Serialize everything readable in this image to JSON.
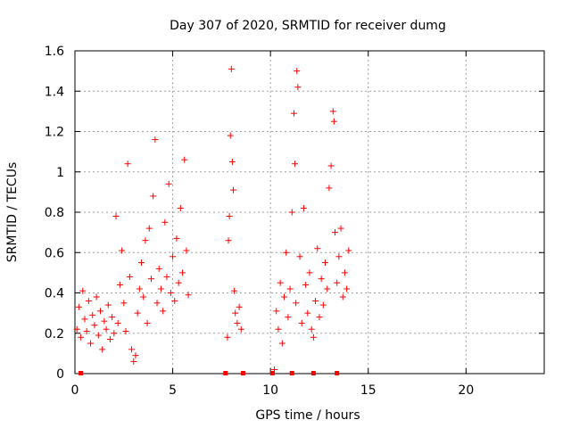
{
  "chart_data": {
    "type": "scatter",
    "title": "Day 307 of 2020, SRMTID for receiver dumg",
    "xlabel": "GPS time / hours",
    "ylabel": "SRMTID / TECUs",
    "xlim": [
      0,
      24
    ],
    "ylim": [
      0,
      1.6
    ],
    "grid": true,
    "xticks": [
      0,
      5,
      10,
      15,
      20
    ],
    "xtick_labels": [
      "0",
      "5",
      "10",
      "15",
      "20"
    ],
    "yticks": [
      0,
      0.2,
      0.4,
      0.6,
      0.8,
      1.0,
      1.2,
      1.4,
      1.6
    ],
    "ytick_labels": [
      "0",
      "0.2",
      "0.4",
      "0.6",
      "0.8",
      "1",
      "1.2",
      "1.4",
      "1.6"
    ],
    "marker_color": "#ff0000",
    "series": [
      {
        "name": "SRMTID",
        "marker": "+",
        "points": [
          [
            0.1,
            0.22
          ],
          [
            0.2,
            0.33
          ],
          [
            0.3,
            0.18
          ],
          [
            0.4,
            0.41
          ],
          [
            0.5,
            0.27
          ],
          [
            0.6,
            0.21
          ],
          [
            0.7,
            0.36
          ],
          [
            0.8,
            0.15
          ],
          [
            0.9,
            0.29
          ],
          [
            1.0,
            0.24
          ],
          [
            1.1,
            0.38
          ],
          [
            1.2,
            0.19
          ],
          [
            1.3,
            0.31
          ],
          [
            1.4,
            0.12
          ],
          [
            1.5,
            0.26
          ],
          [
            1.6,
            0.22
          ],
          [
            1.7,
            0.34
          ],
          [
            1.8,
            0.17
          ],
          [
            1.9,
            0.28
          ],
          [
            2.0,
            0.2
          ],
          [
            2.1,
            0.78
          ],
          [
            2.2,
            0.25
          ],
          [
            2.3,
            0.44
          ],
          [
            2.4,
            0.61
          ],
          [
            2.5,
            0.35
          ],
          [
            2.6,
            0.21
          ],
          [
            2.7,
            1.04
          ],
          [
            2.8,
            0.48
          ],
          [
            2.9,
            0.12
          ],
          [
            3.0,
            0.06
          ],
          [
            3.1,
            0.09
          ],
          [
            3.2,
            0.3
          ],
          [
            3.3,
            0.42
          ],
          [
            3.4,
            0.55
          ],
          [
            3.5,
            0.38
          ],
          [
            3.6,
            0.66
          ],
          [
            3.7,
            0.25
          ],
          [
            3.8,
            0.72
          ],
          [
            3.9,
            0.47
          ],
          [
            4.0,
            0.88
          ],
          [
            4.1,
            1.16
          ],
          [
            4.2,
            0.35
          ],
          [
            4.3,
            0.52
          ],
          [
            4.4,
            0.42
          ],
          [
            4.5,
            0.31
          ],
          [
            4.6,
            0.75
          ],
          [
            4.7,
            0.48
          ],
          [
            4.8,
            0.94
          ],
          [
            4.9,
            0.4
          ],
          [
            5.0,
            0.58
          ],
          [
            5.1,
            0.36
          ],
          [
            5.2,
            0.67
          ],
          [
            5.3,
            0.45
          ],
          [
            5.4,
            0.82
          ],
          [
            5.5,
            0.5
          ],
          [
            5.6,
            1.06
          ],
          [
            5.7,
            0.61
          ],
          [
            5.8,
            0.39
          ],
          [
            7.8,
            0.18
          ],
          [
            7.85,
            0.66
          ],
          [
            7.9,
            0.78
          ],
          [
            7.95,
            1.18
          ],
          [
            8.0,
            1.51
          ],
          [
            8.05,
            1.05
          ],
          [
            8.1,
            0.91
          ],
          [
            8.15,
            0.41
          ],
          [
            8.2,
            0.3
          ],
          [
            8.3,
            0.25
          ],
          [
            8.4,
            0.33
          ],
          [
            8.5,
            0.22
          ],
          [
            10.2,
            0.02
          ],
          [
            10.3,
            0.31
          ],
          [
            10.4,
            0.22
          ],
          [
            10.5,
            0.45
          ],
          [
            10.6,
            0.15
          ],
          [
            10.7,
            0.38
          ],
          [
            10.8,
            0.6
          ],
          [
            10.9,
            0.28
          ],
          [
            11.0,
            0.42
          ],
          [
            11.1,
            0.8
          ],
          [
            11.2,
            1.29
          ],
          [
            11.25,
            1.04
          ],
          [
            11.3,
            0.35
          ],
          [
            11.35,
            1.5
          ],
          [
            11.4,
            1.42
          ],
          [
            11.5,
            0.58
          ],
          [
            11.6,
            0.25
          ],
          [
            11.7,
            0.82
          ],
          [
            11.8,
            0.44
          ],
          [
            11.9,
            0.3
          ],
          [
            12.0,
            0.5
          ],
          [
            12.1,
            0.22
          ],
          [
            12.2,
            0.18
          ],
          [
            12.3,
            0.36
          ],
          [
            12.4,
            0.62
          ],
          [
            12.5,
            0.28
          ],
          [
            12.6,
            0.47
          ],
          [
            12.7,
            0.34
          ],
          [
            12.8,
            0.55
          ],
          [
            12.9,
            0.42
          ],
          [
            13.0,
            0.92
          ],
          [
            13.1,
            1.03
          ],
          [
            13.2,
            1.3
          ],
          [
            13.25,
            1.25
          ],
          [
            13.3,
            0.7
          ],
          [
            13.4,
            0.45
          ],
          [
            13.5,
            0.58
          ],
          [
            13.6,
            0.72
          ],
          [
            13.7,
            0.38
          ],
          [
            13.8,
            0.5
          ],
          [
            13.9,
            0.42
          ],
          [
            14.0,
            0.61
          ]
        ]
      }
    ],
    "flag_markers": {
      "y": 0,
      "x": [
        0.3,
        7.7,
        8.6,
        10.1,
        11.1,
        12.2,
        13.4
      ]
    }
  }
}
